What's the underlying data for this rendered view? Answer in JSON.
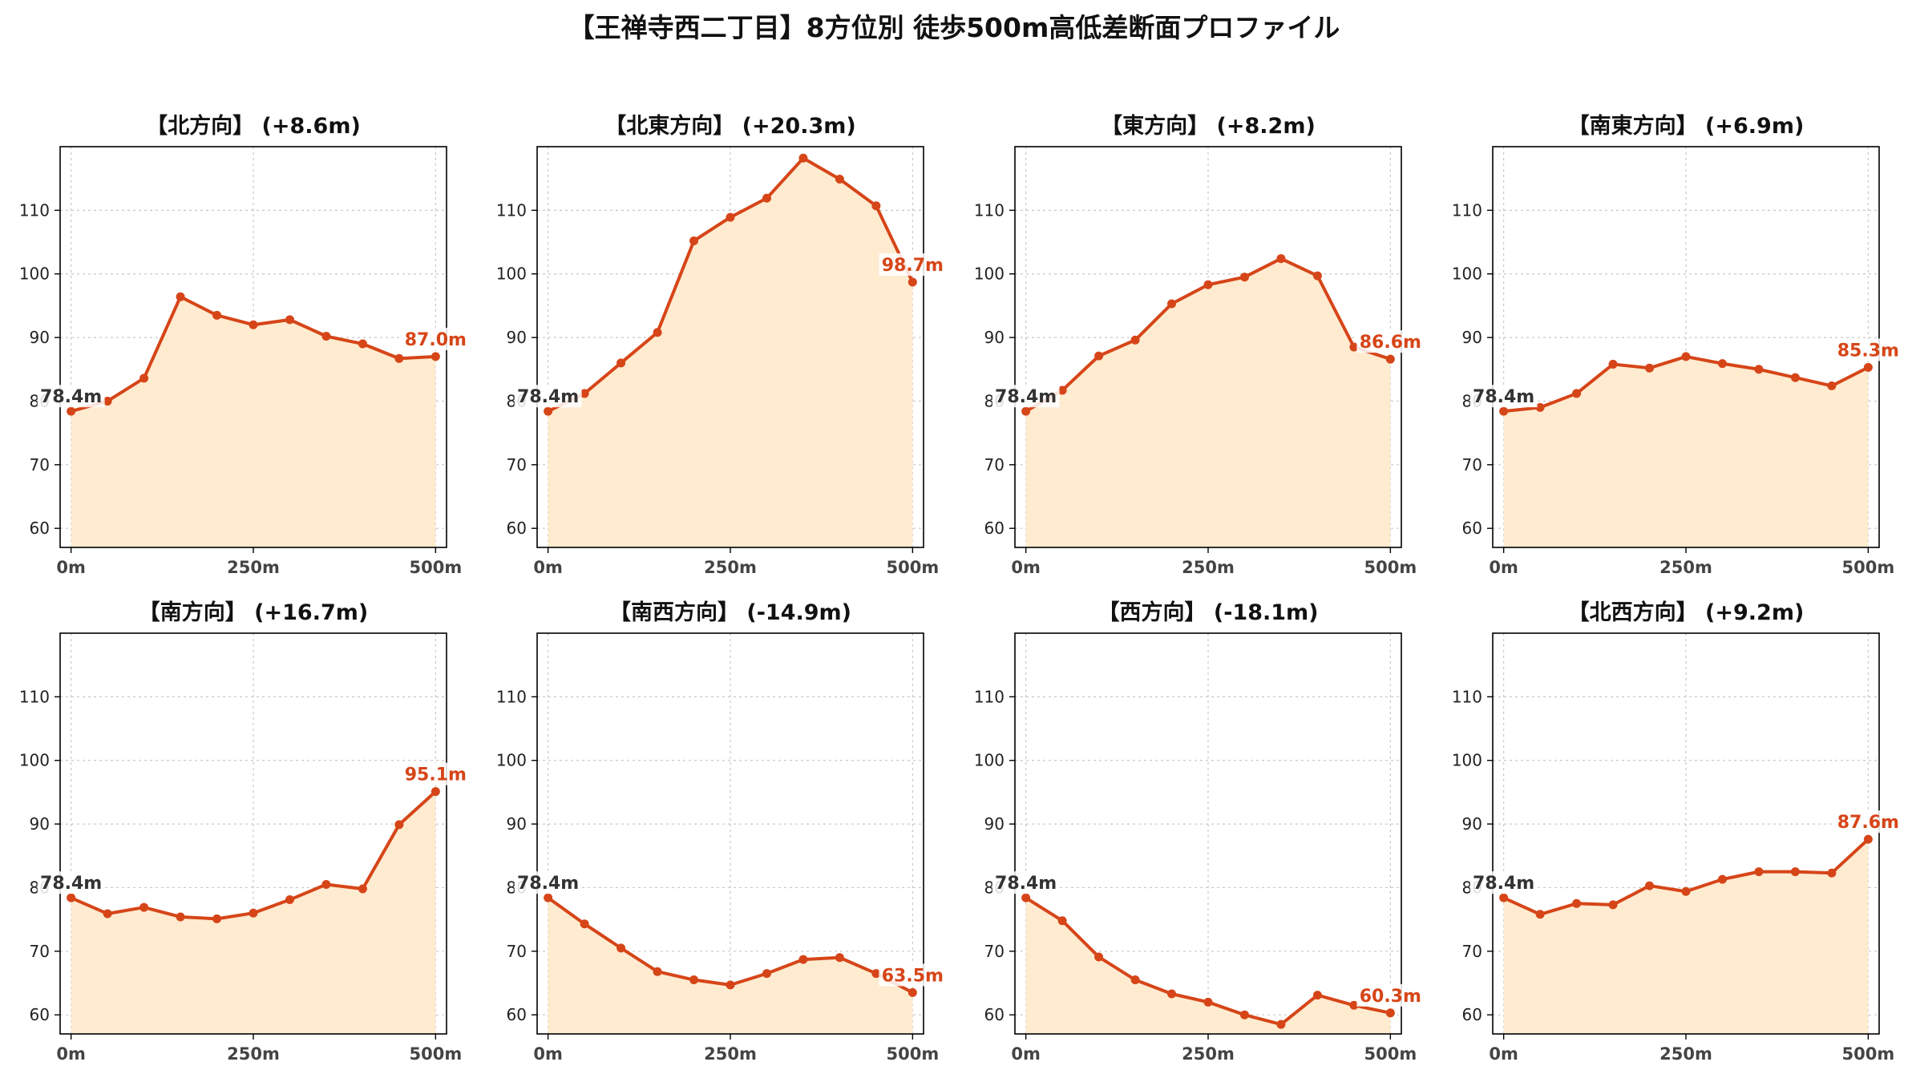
{
  "title": "【王禅寺西二丁目】8方位別 徒歩500m高低差断面プロファイル",
  "colors": {
    "line": "#d64518",
    "fill": "#feebd0",
    "grid": "#c8c8c8",
    "start_label": "#333333",
    "end_label": "#d64518"
  },
  "chart_data": [
    {
      "type": "area",
      "title": "【北方向】 (+8.6m)",
      "x": [
        0,
        50,
        100,
        150,
        200,
        250,
        300,
        350,
        400,
        450,
        500
      ],
      "values": [
        78.4,
        80.0,
        83.6,
        96.4,
        93.5,
        92.0,
        92.8,
        90.2,
        89.0,
        86.7,
        87.0
      ],
      "xticks": [
        "0m",
        "250m",
        "500m"
      ],
      "yticks": [
        60,
        70,
        80,
        90,
        100,
        110
      ],
      "ylim": [
        57,
        120
      ],
      "xlim": [
        -15,
        515
      ],
      "start_label": "78.4m",
      "end_label": "87.0m",
      "grid": true
    },
    {
      "type": "area",
      "title": "【北東方向】 (+20.3m)",
      "x": [
        0,
        50,
        100,
        150,
        200,
        250,
        300,
        350,
        400,
        450,
        500
      ],
      "values": [
        78.4,
        81.2,
        86.0,
        90.8,
        105.2,
        108.9,
        111.9,
        118.2,
        114.9,
        110.7,
        98.7
      ],
      "xticks": [
        "0m",
        "250m",
        "500m"
      ],
      "yticks": [
        60,
        70,
        80,
        90,
        100,
        110
      ],
      "ylim": [
        57,
        120
      ],
      "xlim": [
        -15,
        515
      ],
      "start_label": "78.4m",
      "end_label": "98.7m",
      "grid": true
    },
    {
      "type": "area",
      "title": "【東方向】 (+8.2m)",
      "x": [
        0,
        50,
        100,
        150,
        200,
        250,
        300,
        350,
        400,
        450,
        500
      ],
      "values": [
        78.4,
        81.7,
        87.1,
        89.6,
        95.3,
        98.3,
        99.5,
        102.4,
        99.7,
        88.5,
        86.6
      ],
      "xticks": [
        "0m",
        "250m",
        "500m"
      ],
      "yticks": [
        60,
        70,
        80,
        90,
        100,
        110
      ],
      "ylim": [
        57,
        120
      ],
      "xlim": [
        -15,
        515
      ],
      "start_label": "78.4m",
      "end_label": "86.6m",
      "grid": true
    },
    {
      "type": "area",
      "title": "【南東方向】 (+6.9m)",
      "x": [
        0,
        50,
        100,
        150,
        200,
        250,
        300,
        350,
        400,
        450,
        500
      ],
      "values": [
        78.4,
        79.0,
        81.2,
        85.8,
        85.2,
        87.0,
        85.9,
        85.0,
        83.7,
        82.4,
        85.3
      ],
      "xticks": [
        "0m",
        "250m",
        "500m"
      ],
      "yticks": [
        60,
        70,
        80,
        90,
        100,
        110
      ],
      "ylim": [
        57,
        120
      ],
      "xlim": [
        -15,
        515
      ],
      "start_label": "78.4m",
      "end_label": "85.3m",
      "grid": true
    },
    {
      "type": "area",
      "title": "【南方向】 (+16.7m)",
      "x": [
        0,
        50,
        100,
        150,
        200,
        250,
        300,
        350,
        400,
        450,
        500
      ],
      "values": [
        78.4,
        75.9,
        76.9,
        75.4,
        75.1,
        76.0,
        78.1,
        80.5,
        79.8,
        89.9,
        95.1
      ],
      "xticks": [
        "0m",
        "250m",
        "500m"
      ],
      "yticks": [
        60,
        70,
        80,
        90,
        100,
        110
      ],
      "ylim": [
        57,
        120
      ],
      "xlim": [
        -15,
        515
      ],
      "start_label": "78.4m",
      "end_label": "95.1m",
      "grid": true
    },
    {
      "type": "area",
      "title": "【南西方向】 (-14.9m)",
      "x": [
        0,
        50,
        100,
        150,
        200,
        250,
        300,
        350,
        400,
        450,
        500
      ],
      "values": [
        78.4,
        74.3,
        70.5,
        66.8,
        65.5,
        64.7,
        66.5,
        68.7,
        69.0,
        66.5,
        63.5
      ],
      "xticks": [
        "0m",
        "250m",
        "500m"
      ],
      "yticks": [
        60,
        70,
        80,
        90,
        100,
        110
      ],
      "ylim": [
        57,
        120
      ],
      "xlim": [
        -15,
        515
      ],
      "start_label": "78.4m",
      "end_label": "63.5m",
      "grid": true
    },
    {
      "type": "area",
      "title": "【西方向】 (-18.1m)",
      "x": [
        0,
        50,
        100,
        150,
        200,
        250,
        300,
        350,
        400,
        450,
        500
      ],
      "values": [
        78.4,
        74.8,
        69.1,
        65.5,
        63.3,
        62.0,
        60.0,
        58.5,
        63.1,
        61.5,
        60.3
      ],
      "xticks": [
        "0m",
        "250m",
        "500m"
      ],
      "yticks": [
        60,
        70,
        80,
        90,
        100,
        110
      ],
      "ylim": [
        57,
        120
      ],
      "xlim": [
        -15,
        515
      ],
      "start_label": "78.4m",
      "end_label": "60.3m",
      "grid": true
    },
    {
      "type": "area",
      "title": "【北西方向】 (+9.2m)",
      "x": [
        0,
        50,
        100,
        150,
        200,
        250,
        300,
        350,
        400,
        450,
        500
      ],
      "values": [
        78.4,
        75.8,
        77.5,
        77.3,
        80.3,
        79.4,
        81.3,
        82.5,
        82.5,
        82.3,
        87.6
      ],
      "xticks": [
        "0m",
        "250m",
        "500m"
      ],
      "yticks": [
        60,
        70,
        80,
        90,
        100,
        110
      ],
      "ylim": [
        57,
        120
      ],
      "xlim": [
        -15,
        515
      ],
      "start_label": "78.4m",
      "end_label": "87.6m",
      "grid": true
    }
  ]
}
